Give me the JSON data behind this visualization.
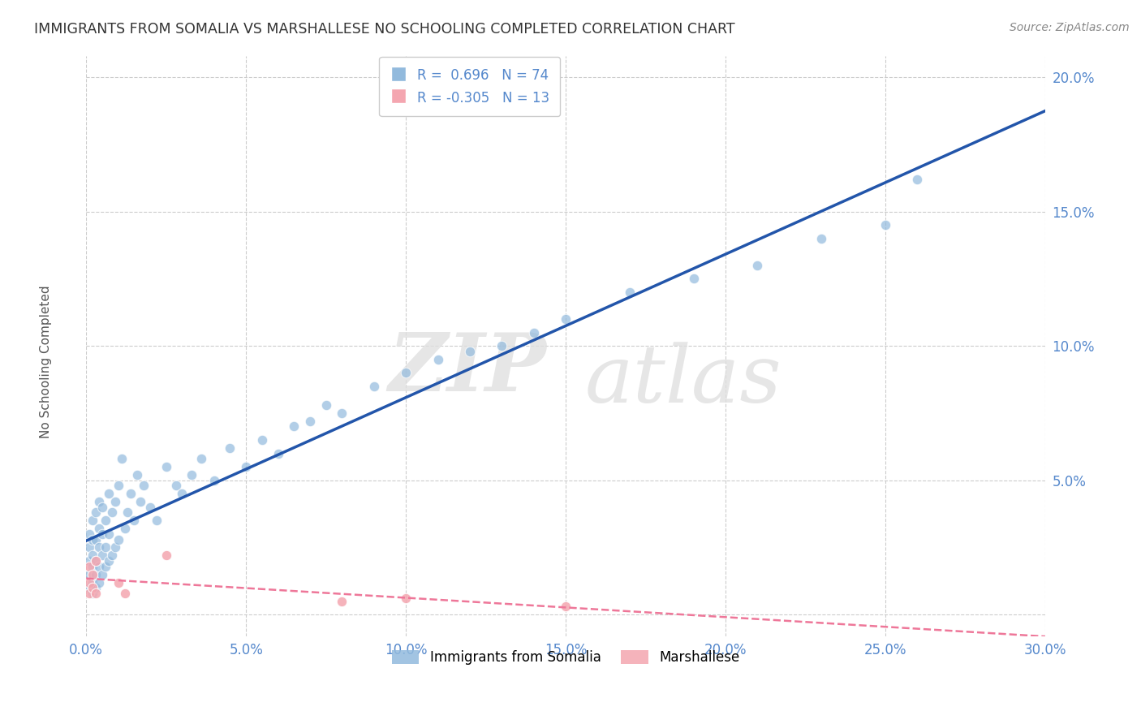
{
  "title": "IMMIGRANTS FROM SOMALIA VS MARSHALLESE NO SCHOOLING COMPLETED CORRELATION CHART",
  "source": "Source: ZipAtlas.com",
  "ylabel": "No Schooling Completed",
  "xlim": [
    0.0,
    0.3
  ],
  "ylim": [
    -0.008,
    0.208
  ],
  "xticks": [
    0.0,
    0.05,
    0.1,
    0.15,
    0.2,
    0.25,
    0.3
  ],
  "yticks": [
    0.0,
    0.05,
    0.1,
    0.15,
    0.2
  ],
  "xtick_labels": [
    "0.0%",
    "5.0%",
    "10.0%",
    "15.0%",
    "20.0%",
    "25.0%",
    "30.0%"
  ],
  "ytick_labels": [
    "",
    "5.0%",
    "10.0%",
    "15.0%",
    "20.0%"
  ],
  "somalia_color": "#92BADD",
  "marshallese_color": "#F4A6B0",
  "somalia_line_color": "#2255AA",
  "marshallese_line_color": "#EE7799",
  "R_somalia": 0.696,
  "N_somalia": 74,
  "R_marshallese": -0.305,
  "N_marshallese": 13,
  "watermark_zip": "ZIP",
  "watermark_atlas": "atlas",
  "background_color": "#ffffff",
  "grid_color": "#cccccc",
  "tick_color": "#5588CC",
  "somalia_x": [
    0.001,
    0.001,
    0.001,
    0.001,
    0.001,
    0.002,
    0.002,
    0.002,
    0.002,
    0.002,
    0.002,
    0.003,
    0.003,
    0.003,
    0.003,
    0.003,
    0.004,
    0.004,
    0.004,
    0.004,
    0.004,
    0.005,
    0.005,
    0.005,
    0.005,
    0.006,
    0.006,
    0.006,
    0.007,
    0.007,
    0.007,
    0.008,
    0.008,
    0.009,
    0.009,
    0.01,
    0.01,
    0.011,
    0.012,
    0.013,
    0.014,
    0.015,
    0.016,
    0.017,
    0.018,
    0.02,
    0.022,
    0.025,
    0.028,
    0.03,
    0.033,
    0.036,
    0.04,
    0.045,
    0.05,
    0.055,
    0.06,
    0.065,
    0.07,
    0.075,
    0.08,
    0.09,
    0.1,
    0.11,
    0.12,
    0.13,
    0.14,
    0.15,
    0.17,
    0.19,
    0.21,
    0.23,
    0.25,
    0.26
  ],
  "somalia_y": [
    0.01,
    0.015,
    0.02,
    0.025,
    0.03,
    0.008,
    0.012,
    0.018,
    0.022,
    0.028,
    0.035,
    0.01,
    0.015,
    0.02,
    0.028,
    0.038,
    0.012,
    0.018,
    0.025,
    0.032,
    0.042,
    0.015,
    0.022,
    0.03,
    0.04,
    0.018,
    0.025,
    0.035,
    0.02,
    0.03,
    0.045,
    0.022,
    0.038,
    0.025,
    0.042,
    0.028,
    0.048,
    0.058,
    0.032,
    0.038,
    0.045,
    0.035,
    0.052,
    0.042,
    0.048,
    0.04,
    0.035,
    0.055,
    0.048,
    0.045,
    0.052,
    0.058,
    0.05,
    0.062,
    0.055,
    0.065,
    0.06,
    0.07,
    0.072,
    0.078,
    0.075,
    0.085,
    0.09,
    0.095,
    0.098,
    0.1,
    0.105,
    0.11,
    0.12,
    0.125,
    0.13,
    0.14,
    0.145,
    0.162
  ],
  "marshallese_x": [
    0.001,
    0.001,
    0.001,
    0.002,
    0.002,
    0.003,
    0.003,
    0.01,
    0.012,
    0.025,
    0.08,
    0.1,
    0.15
  ],
  "marshallese_y": [
    0.008,
    0.012,
    0.018,
    0.01,
    0.015,
    0.008,
    0.02,
    0.012,
    0.008,
    0.022,
    0.005,
    0.006,
    0.003
  ]
}
